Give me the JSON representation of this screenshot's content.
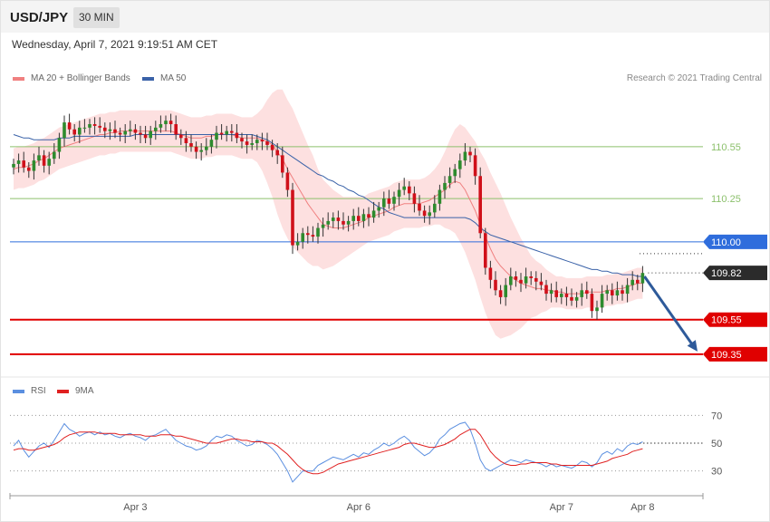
{
  "header": {
    "symbol": "USD/JPY",
    "timeframe": "30 MIN",
    "datetime": "Wednesday, April 7, 2021 9:19:51 AM CET"
  },
  "legend": {
    "ma20_label": "MA 20 + Bollinger Bands",
    "ma50_label": "MA 50",
    "credit": "Research © 2021 Trading Central",
    "rsi_label": "RSI",
    "rsi_ma_label": "9MA"
  },
  "colors": {
    "bull": "#2e8b2e",
    "bear": "#d0101a",
    "ma20": "#f08080",
    "ma50": "#3a62a8",
    "band": "#fde0e0",
    "resistance": "#8cc06c",
    "pivot": "#2f6ddc",
    "support": "#e00000",
    "arrow": "#2e5a9a",
    "rsi": "#5b8fe0",
    "rsi_ma": "#e02020"
  },
  "chart_data": [
    {
      "type": "candlestick",
      "title": "USD/JPY",
      "ylim": [
        109.25,
        110.9
      ],
      "x_ticks": [
        "Apr 3",
        "Apr 6",
        "Apr 7",
        "Apr 8"
      ],
      "levels": [
        {
          "label": "110.55",
          "value": 110.55,
          "kind": "resistance"
        },
        {
          "label": "110.25",
          "value": 110.25,
          "kind": "resistance"
        },
        {
          "label": "110.00",
          "value": 110.0,
          "kind": "pivot"
        },
        {
          "label": "109.82",
          "value": 109.82,
          "kind": "last"
        },
        {
          "label": "109.55",
          "value": 109.55,
          "kind": "support"
        },
        {
          "label": "109.35",
          "value": 109.35,
          "kind": "support"
        }
      ],
      "target_arrow": {
        "from": 109.8,
        "to": 109.35
      },
      "closes": [
        110.45,
        110.47,
        110.43,
        110.41,
        110.47,
        110.5,
        110.44,
        110.48,
        110.52,
        110.6,
        110.69,
        110.65,
        110.62,
        110.66,
        110.66,
        110.68,
        110.67,
        110.66,
        110.64,
        110.65,
        110.63,
        110.62,
        110.64,
        110.65,
        110.63,
        110.62,
        110.6,
        110.64,
        110.66,
        110.68,
        110.7,
        110.68,
        110.62,
        110.6,
        110.57,
        110.55,
        110.52,
        110.53,
        110.55,
        110.59,
        110.63,
        110.62,
        110.64,
        110.63,
        110.6,
        110.58,
        110.56,
        110.57,
        110.59,
        110.58,
        110.56,
        110.53,
        110.5,
        110.4,
        110.3,
        109.98,
        110.0,
        110.05,
        110.04,
        110.03,
        110.08,
        110.1,
        110.12,
        110.14,
        110.12,
        110.1,
        110.12,
        110.15,
        110.12,
        110.16,
        110.14,
        110.18,
        110.2,
        110.25,
        110.22,
        110.26,
        110.3,
        110.32,
        110.28,
        110.22,
        110.18,
        110.15,
        110.17,
        110.22,
        110.3,
        110.34,
        110.38,
        110.42,
        110.47,
        110.52,
        110.5,
        110.38,
        110.05,
        109.85,
        109.78,
        109.72,
        109.68,
        109.75,
        109.8,
        109.78,
        109.76,
        109.8,
        109.79,
        109.77,
        109.75,
        109.7,
        109.72,
        109.68,
        109.7,
        109.68,
        109.66,
        109.68,
        109.72,
        109.7,
        109.6,
        109.62,
        109.7,
        109.72,
        109.69,
        109.72,
        109.7,
        109.75,
        109.78,
        109.76,
        109.82
      ],
      "ma20": [
        110.42,
        110.43,
        110.43,
        110.44,
        110.45,
        110.47,
        110.48,
        110.5,
        110.52,
        110.54,
        110.55,
        110.56,
        110.57,
        110.58,
        110.59,
        110.6,
        110.61,
        110.62,
        110.62,
        110.63,
        110.63,
        110.64,
        110.64,
        110.64,
        110.64,
        110.64,
        110.64,
        110.64,
        110.64,
        110.64,
        110.64,
        110.64,
        110.63,
        110.62,
        110.61,
        110.6,
        110.6,
        110.6,
        110.61,
        110.61,
        110.62,
        110.62,
        110.62,
        110.62,
        110.61,
        110.6,
        110.6,
        110.6,
        110.6,
        110.59,
        110.58,
        110.56,
        110.52,
        110.48,
        110.42,
        110.37,
        110.32,
        110.27,
        110.22,
        110.18,
        110.14,
        110.1,
        110.09,
        110.08,
        110.08,
        110.08,
        110.09,
        110.1,
        110.11,
        110.12,
        110.14,
        110.15,
        110.16,
        110.17,
        110.18,
        110.2,
        110.21,
        110.22,
        110.22,
        110.22,
        110.22,
        110.23,
        110.24,
        110.26,
        110.28,
        110.3,
        110.33,
        110.35,
        110.34,
        110.3,
        110.24,
        110.18,
        110.1,
        110.03,
        109.96,
        109.9,
        109.86,
        109.83,
        109.8,
        109.78,
        109.76,
        109.75,
        109.74,
        109.73,
        109.73,
        109.72,
        109.72,
        109.71,
        109.71,
        109.7,
        109.7,
        109.7,
        109.7,
        109.71,
        109.71,
        109.71,
        109.71,
        109.72,
        109.72,
        109.73,
        109.73,
        109.74,
        109.75,
        109.76,
        109.76
      ],
      "ma50": [
        110.62,
        110.61,
        110.6,
        110.6,
        110.59,
        110.59,
        110.59,
        110.59,
        110.59,
        110.6,
        110.6,
        110.6,
        110.61,
        110.61,
        110.61,
        110.61,
        110.61,
        110.61,
        110.61,
        110.61,
        110.61,
        110.61,
        110.61,
        110.61,
        110.62,
        110.62,
        110.62,
        110.62,
        110.62,
        110.62,
        110.62,
        110.62,
        110.62,
        110.62,
        110.62,
        110.62,
        110.62,
        110.62,
        110.62,
        110.62,
        110.62,
        110.62,
        110.62,
        110.62,
        110.62,
        110.62,
        110.62,
        110.62,
        110.61,
        110.6,
        110.59,
        110.57,
        110.55,
        110.53,
        110.51,
        110.49,
        110.47,
        110.45,
        110.43,
        110.41,
        110.39,
        110.38,
        110.36,
        110.35,
        110.33,
        110.32,
        110.3,
        110.29,
        110.27,
        110.26,
        110.24,
        110.22,
        110.2,
        110.19,
        110.17,
        110.16,
        110.15,
        110.14,
        110.14,
        110.14,
        110.14,
        110.14,
        110.14,
        110.14,
        110.14,
        110.14,
        110.14,
        110.14,
        110.14,
        110.14,
        110.13,
        110.11,
        110.08,
        110.06,
        110.04,
        110.03,
        110.02,
        110.01,
        110.0,
        109.99,
        109.98,
        109.97,
        109.96,
        109.95,
        109.94,
        109.93,
        109.92,
        109.91,
        109.9,
        109.89,
        109.88,
        109.87,
        109.86,
        109.85,
        109.84,
        109.84,
        109.83,
        109.83,
        109.82,
        109.82,
        109.81,
        109.81,
        109.81,
        109.8,
        109.8
      ],
      "band_width": [
        0.12,
        0.12,
        0.12,
        0.12,
        0.12,
        0.12,
        0.12,
        0.12,
        0.12,
        0.12,
        0.12,
        0.12,
        0.12,
        0.12,
        0.12,
        0.12,
        0.12,
        0.12,
        0.12,
        0.12,
        0.12,
        0.12,
        0.12,
        0.12,
        0.12,
        0.12,
        0.12,
        0.12,
        0.12,
        0.12,
        0.12,
        0.12,
        0.12,
        0.12,
        0.12,
        0.12,
        0.12,
        0.12,
        0.12,
        0.12,
        0.12,
        0.12,
        0.12,
        0.12,
        0.12,
        0.12,
        0.12,
        0.12,
        0.14,
        0.18,
        0.24,
        0.3,
        0.36,
        0.4,
        0.4,
        0.4,
        0.38,
        0.36,
        0.34,
        0.32,
        0.28,
        0.26,
        0.24,
        0.22,
        0.2,
        0.18,
        0.17,
        0.16,
        0.15,
        0.14,
        0.14,
        0.14,
        0.14,
        0.14,
        0.14,
        0.14,
        0.14,
        0.14,
        0.14,
        0.14,
        0.14,
        0.14,
        0.15,
        0.16,
        0.18,
        0.22,
        0.26,
        0.3,
        0.34,
        0.36,
        0.38,
        0.4,
        0.42,
        0.44,
        0.44,
        0.44,
        0.42,
        0.38,
        0.34,
        0.3,
        0.26,
        0.22,
        0.18,
        0.16,
        0.14,
        0.12,
        0.1,
        0.09,
        0.09,
        0.09,
        0.09,
        0.09,
        0.09,
        0.09,
        0.09,
        0.09,
        0.09,
        0.09,
        0.09,
        0.09,
        0.09,
        0.09,
        0.09,
        0.09,
        0.09
      ]
    },
    {
      "type": "line",
      "title": "RSI",
      "ylim": [
        20,
        80
      ],
      "y_ticks": [
        70,
        50,
        30
      ],
      "last_level": 50,
      "series": [
        {
          "name": "RSI",
          "values": [
            48,
            52,
            45,
            40,
            44,
            48,
            50,
            47,
            52,
            58,
            64,
            60,
            58,
            55,
            57,
            58,
            56,
            58,
            56,
            57,
            55,
            54,
            56,
            57,
            55,
            54,
            52,
            55,
            56,
            58,
            60,
            56,
            52,
            50,
            48,
            47,
            45,
            46,
            48,
            52,
            55,
            54,
            56,
            55,
            52,
            50,
            48,
            49,
            52,
            51,
            49,
            46,
            42,
            36,
            30,
            22,
            26,
            30,
            30,
            30,
            34,
            36,
            38,
            40,
            39,
            38,
            40,
            42,
            40,
            43,
            42,
            45,
            47,
            50,
            48,
            50,
            53,
            55,
            52,
            47,
            44,
            41,
            43,
            47,
            53,
            56,
            60,
            62,
            64,
            65,
            60,
            50,
            38,
            32,
            30,
            32,
            34,
            36,
            38,
            37,
            36,
            38,
            37,
            36,
            35,
            33,
            35,
            33,
            34,
            33,
            32,
            34,
            37,
            36,
            33,
            36,
            42,
            44,
            42,
            46,
            44,
            48,
            50,
            49,
            51
          ]
        },
        {
          "name": "9MA",
          "values": [
            45,
            46,
            46,
            45,
            45,
            46,
            47,
            48,
            49,
            51,
            54,
            56,
            57,
            58,
            58,
            58,
            58,
            57,
            57,
            57,
            57,
            56,
            56,
            56,
            56,
            56,
            55,
            55,
            55,
            56,
            56,
            56,
            55,
            55,
            54,
            53,
            52,
            51,
            50,
            50,
            50,
            51,
            52,
            53,
            53,
            52,
            52,
            51,
            51,
            51,
            50,
            50,
            48,
            45,
            42,
            38,
            34,
            31,
            29,
            28,
            28,
            29,
            31,
            33,
            35,
            36,
            37,
            38,
            39,
            40,
            41,
            42,
            43,
            44,
            45,
            46,
            47,
            49,
            50,
            50,
            49,
            48,
            47,
            47,
            48,
            49,
            51,
            53,
            56,
            58,
            60,
            60,
            56,
            50,
            44,
            40,
            37,
            35,
            34,
            34,
            35,
            35,
            36,
            36,
            36,
            36,
            35,
            35,
            34,
            34,
            34,
            34,
            34,
            34,
            34,
            35,
            36,
            37,
            39,
            40,
            41,
            42,
            44,
            45,
            46
          ]
        }
      ]
    }
  ]
}
